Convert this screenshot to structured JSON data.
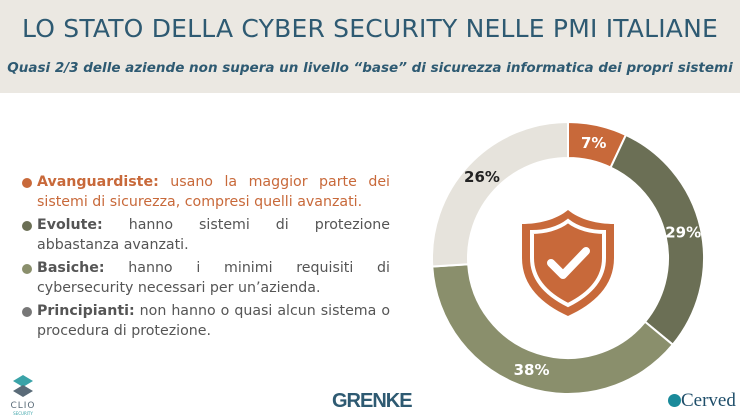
{
  "header": {
    "title": "LO STATO DELLA CYBER SECURITY NELLE PMI ITALIANE",
    "subtitle": "Quasi 2/3 delle aziende non supera un livello “base” di sicurezza informatica dei propri sistemi"
  },
  "legend": [
    {
      "label": "Avanguardiste:",
      "text": " usano la maggior parte dei sistemi di sicurezza, compresi quelli avanzati.",
      "color": "#c8693a",
      "text_color": "#c8693a"
    },
    {
      "label": "Evolute:",
      "text": " hanno sistemi di protezione abbastanza avanzati.",
      "color": "#6b6f55",
      "text_color": "#555555"
    },
    {
      "label": "Basiche:",
      "text": " hanno i minimi requisiti di cybersecurity necessari per un’azienda.",
      "color": "#8a8f6c",
      "text_color": "#555555"
    },
    {
      "label": "Principianti:",
      "text": " non hanno o quasi alcun sistema o procedura di protezione.",
      "color": "#777777",
      "text_color": "#555555"
    }
  ],
  "chart_data": {
    "type": "pie",
    "style": "donut",
    "categories": [
      "Avanguardiste",
      "Evolute",
      "Basiche",
      "Principianti"
    ],
    "values": [
      7,
      29,
      38,
      26
    ],
    "labels": [
      "7%",
      "29%",
      "38%",
      "26%"
    ],
    "colors": [
      "#c8693a",
      "#6b6f55",
      "#8a8f6c",
      "#e6e3dc"
    ],
    "label_colors": [
      "#ffffff",
      "#ffffff",
      "#ffffff",
      "#222222"
    ],
    "center_icon": "shield-check-icon"
  },
  "logos": {
    "left": "CLIO SECURITY",
    "center": "GRENKE",
    "right": "Cerved"
  }
}
